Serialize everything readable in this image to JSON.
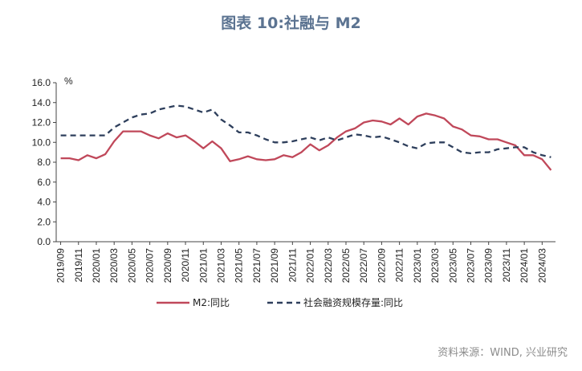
{
  "title": "图表 10:社融与 M2",
  "source": "资料来源：WIND, 兴业研究",
  "colors": {
    "m2": "#c0485a",
    "tsf": "#2e3f5c",
    "title": "#5b7391"
  },
  "chart_data": {
    "type": "line",
    "ylabel": "%",
    "ylim": [
      0,
      16
    ],
    "yticks": [
      "0.0",
      "2.0",
      "4.0",
      "6.0",
      "8.0",
      "10.0",
      "12.0",
      "14.0",
      "16.0"
    ],
    "x": [
      "2019/09",
      "2019/10",
      "2019/11",
      "2019/12",
      "2020/01",
      "2020/02",
      "2020/03",
      "2020/04",
      "2020/05",
      "2020/06",
      "2020/07",
      "2020/08",
      "2020/09",
      "2020/10",
      "2020/11",
      "2020/12",
      "2021/01",
      "2021/02",
      "2021/03",
      "2021/04",
      "2021/05",
      "2021/06",
      "2021/07",
      "2021/08",
      "2021/09",
      "2021/10",
      "2021/11",
      "2021/12",
      "2022/01",
      "2022/02",
      "2022/03",
      "2022/04",
      "2022/05",
      "2022/06",
      "2022/07",
      "2022/08",
      "2022/09",
      "2022/10",
      "2022/11",
      "2022/12",
      "2023/01",
      "2023/02",
      "2023/03",
      "2023/04",
      "2023/05",
      "2023/06",
      "2023/07",
      "2023/08",
      "2023/09",
      "2023/10",
      "2023/11",
      "2023/12",
      "2024/01",
      "2024/02",
      "2024/03",
      "2024/04"
    ],
    "xtick_labels": [
      "2019/09",
      "2019/11",
      "2020/01",
      "2020/03",
      "2020/05",
      "2020/07",
      "2020/09",
      "2020/11",
      "2021/01",
      "2021/03",
      "2021/05",
      "2021/07",
      "2021/09",
      "2021/11",
      "2022/01",
      "2022/03",
      "2022/05",
      "2022/07",
      "2022/09",
      "2022/11",
      "2023/01",
      "2023/03",
      "2023/05",
      "2023/07",
      "2023/09",
      "2023/11",
      "2024/01",
      "2024/03"
    ],
    "series": [
      {
        "name": "M2:同比",
        "style": "solid",
        "values": [
          8.4,
          8.4,
          8.2,
          8.7,
          8.4,
          8.8,
          10.1,
          11.1,
          11.1,
          11.1,
          10.7,
          10.4,
          10.9,
          10.5,
          10.7,
          10.1,
          9.4,
          10.1,
          9.4,
          8.1,
          8.3,
          8.6,
          8.3,
          8.2,
          8.3,
          8.7,
          8.5,
          9.0,
          9.8,
          9.2,
          9.7,
          10.5,
          11.1,
          11.4,
          12.0,
          12.2,
          12.1,
          11.8,
          12.4,
          11.8,
          12.6,
          12.9,
          12.7,
          12.4,
          11.6,
          11.3,
          10.7,
          10.6,
          10.3,
          10.3,
          10.0,
          9.7,
          8.7,
          8.7,
          8.3,
          7.2
        ]
      },
      {
        "name": "社会融资规模存量:同比",
        "style": "dashed",
        "values": [
          10.7,
          10.7,
          10.7,
          10.7,
          10.7,
          10.7,
          11.5,
          12.0,
          12.5,
          12.8,
          12.9,
          13.3,
          13.5,
          13.7,
          13.6,
          13.3,
          13.0,
          13.3,
          12.3,
          11.7,
          11.0,
          11.0,
          10.7,
          10.3,
          10.0,
          10.0,
          10.1,
          10.3,
          10.5,
          10.2,
          10.5,
          10.2,
          10.5,
          10.8,
          10.7,
          10.5,
          10.6,
          10.3,
          10.0,
          9.6,
          9.4,
          9.9,
          10.0,
          10.0,
          9.5,
          9.0,
          8.9,
          9.0,
          9.0,
          9.3,
          9.4,
          9.5,
          9.5,
          9.0,
          8.7,
          8.5
        ]
      }
    ]
  }
}
